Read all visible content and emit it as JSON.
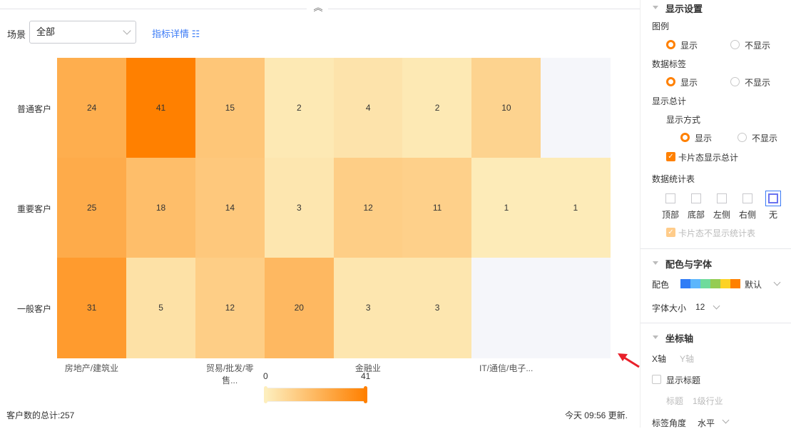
{
  "toolbar": {
    "scene_label": "场景",
    "scene_value": "全部",
    "detail_link": "指标详情 ☷"
  },
  "chart_data": {
    "type": "heatmap",
    "y_categories": [
      "普通客户",
      "重要客户",
      "一般客户"
    ],
    "x_tick_labels": [
      "房地产/建筑业",
      "贸易/批发/零售...",
      "金融业",
      "IT/通信/电子..."
    ],
    "values": [
      [
        24,
        41,
        15,
        2,
        4,
        2,
        10,
        null
      ],
      [
        25,
        18,
        14,
        3,
        12,
        11,
        1,
        1
      ],
      [
        31,
        5,
        12,
        20,
        3,
        3,
        null,
        null
      ]
    ],
    "scale": {
      "min": 0,
      "max": 41,
      "low_color": "#fdeebd",
      "high_color": "#ff8000",
      "empty_color": "#f5f6fa"
    },
    "legend_min_label": "0",
    "legend_max_label": "41",
    "data_labels": true
  },
  "footer": {
    "total": "客户数的总计:257",
    "updated": "今天 09:56 更新."
  },
  "panel": {
    "display": {
      "title": "显示设置",
      "legend": "图例",
      "show": "显示",
      "hide": "不显示",
      "data_labels": "数据标签",
      "show_total": "显示总计",
      "mode": "显示方式",
      "card_total": "卡片态显示总计",
      "stats_table": "数据统计表",
      "positions": [
        "顶部",
        "底部",
        "左侧",
        "右侧",
        "无"
      ],
      "card_no_stats": "卡片态不显示统计表"
    },
    "color_font": {
      "title": "配色与字体",
      "palette_label": "配色",
      "palette": [
        "#2f7cf6",
        "#5cb6fc",
        "#6fdb9c",
        "#95cc52",
        "#fdd224",
        "#ff8000"
      ],
      "palette_value": "默认",
      "font_size_label": "字体大小",
      "font_size": "12"
    },
    "axis": {
      "title": "坐标轴",
      "x_tab": "X轴",
      "y_tab": "Y轴",
      "show_title": "显示标题",
      "title_label": "标题",
      "title_value": "1级行业",
      "angle_label": "标签角度",
      "angle_value": "水平"
    }
  }
}
